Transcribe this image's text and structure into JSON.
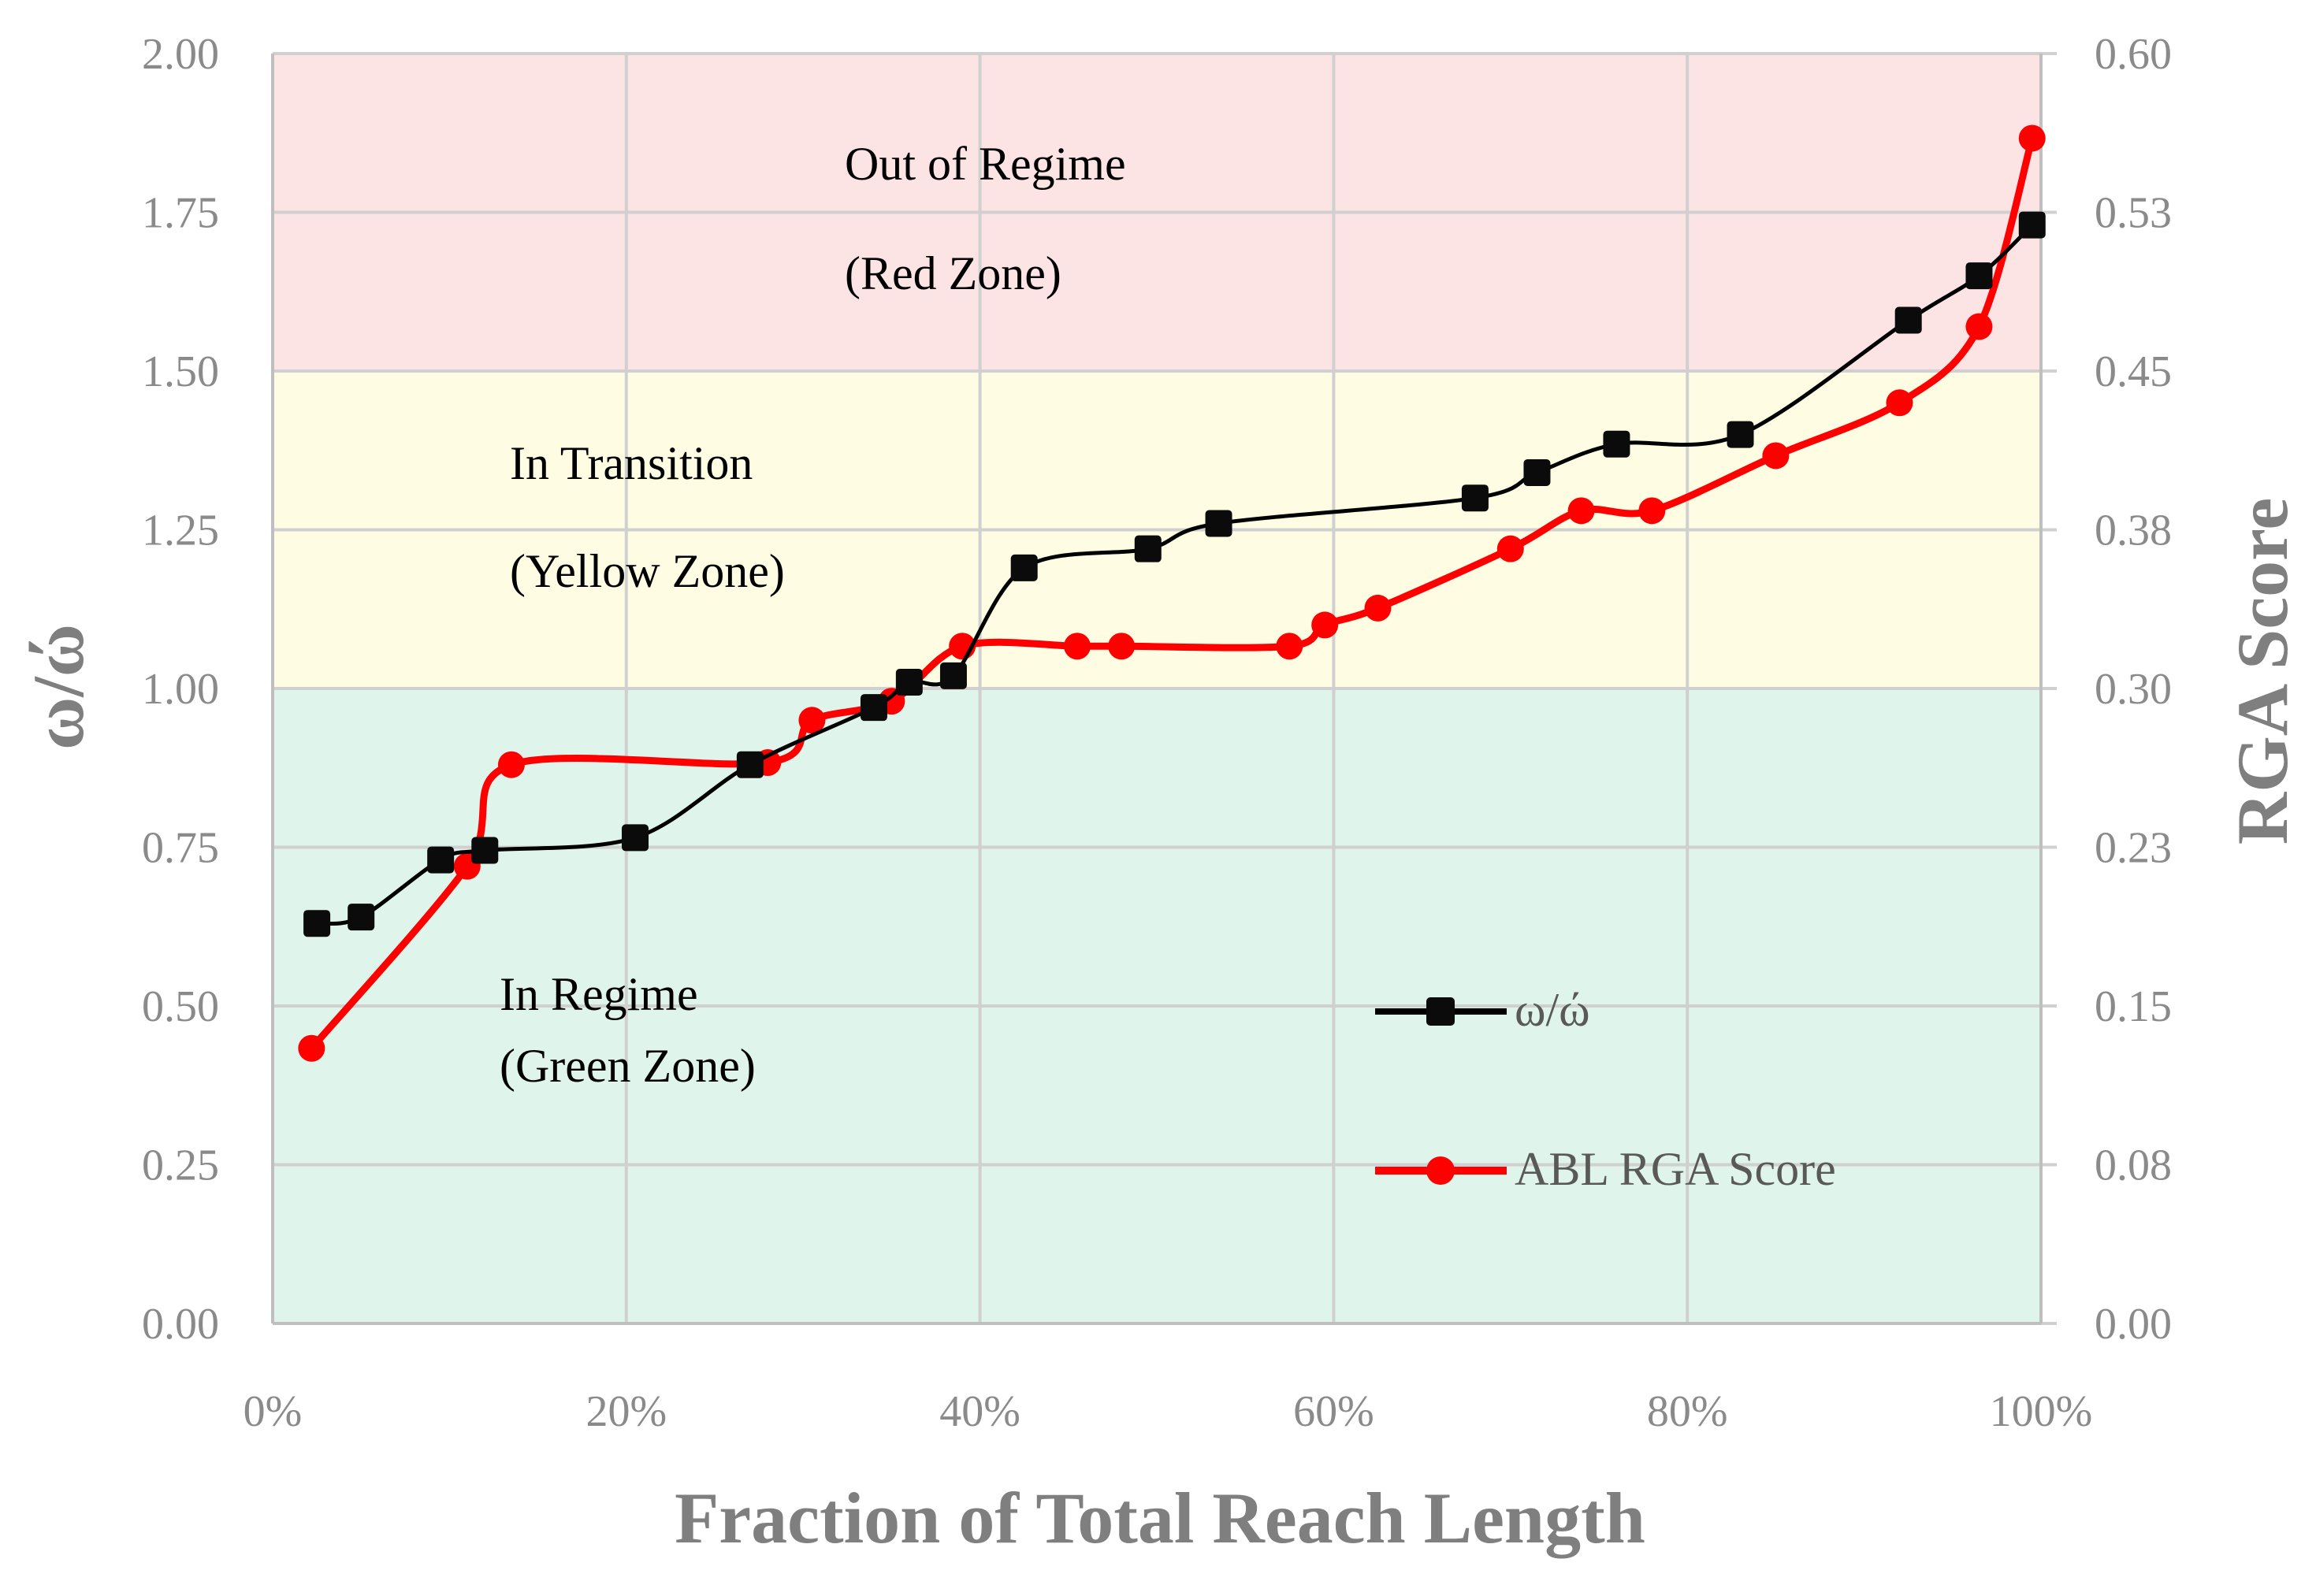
{
  "chart_data": {
    "type": "line",
    "xlabel": "Fraction of Total Reach Length",
    "ylabel_left": "ω/ώ",
    "ylabel_right": "RGA Score",
    "xlim": [
      0,
      100
    ],
    "ylim_left": [
      0,
      2
    ],
    "ylim_right": [
      0,
      0.6
    ],
    "x_ticks": [
      "0%",
      "20%",
      "40%",
      "60%",
      "80%",
      "100%"
    ],
    "y_ticks_left": [
      "0.00",
      "0.25",
      "0.50",
      "0.75",
      "1.00",
      "1.25",
      "1.50",
      "1.75",
      "2.00"
    ],
    "y_ticks_right": [
      "0.00",
      "0.08",
      "0.15",
      "0.23",
      "0.30",
      "0.38",
      "0.45",
      "0.53",
      "0.60"
    ],
    "grid": true,
    "legend_position": "lower-right",
    "zones": [
      {
        "name": "red",
        "from": 1.5,
        "to": 2.0,
        "color": "#fde4e4",
        "label_line1": "Out of Regime",
        "label_line2": "(Red Zone)"
      },
      {
        "name": "yellow",
        "from": 1.0,
        "to": 1.5,
        "color": "#fefde3",
        "label_line1": "In Transition",
        "label_line2": "(Yellow Zone)"
      },
      {
        "name": "green",
        "from": 0.0,
        "to": 1.0,
        "color": "#dff4ea",
        "label_line1": "In Regime",
        "label_line2": "(Green Zone)"
      }
    ],
    "series": [
      {
        "name": "ω/ώ",
        "axis": "left",
        "color": "#000000",
        "marker": "square",
        "x": [
          2.5,
          5,
          9.5,
          12,
          20.5,
          27,
          34,
          36,
          38.5,
          42.5,
          49.5,
          53.5,
          68,
          71.5,
          76,
          83,
          92.5,
          96.5,
          99.5
        ],
        "y": [
          0.63,
          0.64,
          0.73,
          0.745,
          0.765,
          0.88,
          0.97,
          1.01,
          1.02,
          1.19,
          1.22,
          1.26,
          1.3,
          1.34,
          1.385,
          1.4,
          1.58,
          1.65,
          1.73
        ]
      },
      {
        "name": "ABL RGA Score",
        "axis": "right",
        "color": "#ff0000",
        "marker": "circle",
        "x": [
          2.2,
          11,
          13.5,
          28,
          30.5,
          35,
          39,
          45.5,
          48,
          57.5,
          59.5,
          62.5,
          70,
          74,
          78,
          85,
          92,
          96.5,
          99.5
        ],
        "y": [
          0.13,
          0.216,
          0.264,
          0.265,
          0.285,
          0.294,
          0.32,
          0.32,
          0.32,
          0.32,
          0.33,
          0.338,
          0.366,
          0.384,
          0.384,
          0.41,
          0.435,
          0.471,
          0.56
        ]
      }
    ]
  }
}
